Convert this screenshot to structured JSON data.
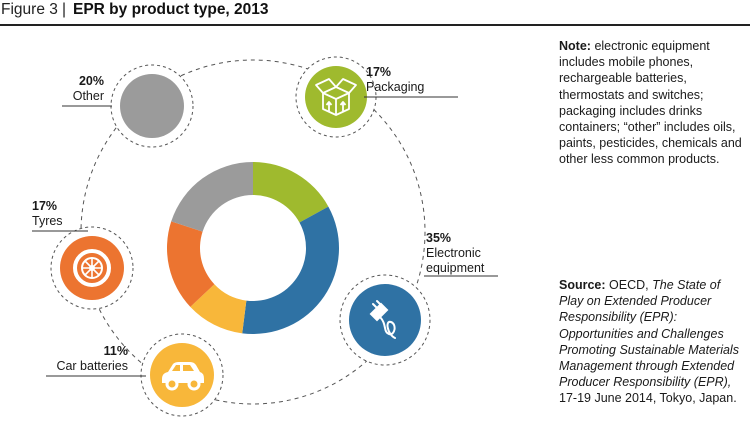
{
  "header": {
    "figure_label": "Figure 3",
    "separator": "|",
    "title": "EPR by product type, 2013"
  },
  "chart_data": {
    "type": "pie",
    "donut": true,
    "title": "EPR by product type, 2013",
    "categories": [
      "Packaging",
      "Electronic equipment",
      "Car batteries",
      "Tyres",
      "Other"
    ],
    "values": [
      17,
      35,
      11,
      17,
      20
    ],
    "percent_labels": [
      "17%",
      "35%",
      "11%",
      "17%",
      "20%"
    ],
    "colors": [
      "#9fba2e",
      "#2f72a4",
      "#f8b73a",
      "#ec7430",
      "#9b9b9b"
    ],
    "icons": [
      "box-icon",
      "plug-icon",
      "car-icon",
      "tyre-icon",
      "blank-circle"
    ]
  },
  "note": {
    "label": "Note:",
    "text": "electronic equipment includes mobile phones, rechargeable batteries, thermostats and switches; packaging includes drinks containers; “other” includes oils, paints, pesticides, chemicals and other less common products."
  },
  "source": {
    "label": "Source:",
    "org": "OECD,",
    "title": "The State of Play on Extended Producer Responsibility (EPR): Opportunities and Challenges Promoting Sustainable Materials Management through Extended Producer Responsibility (EPR),",
    "details": "17-19 June 2014, Tokyo, Japan."
  }
}
